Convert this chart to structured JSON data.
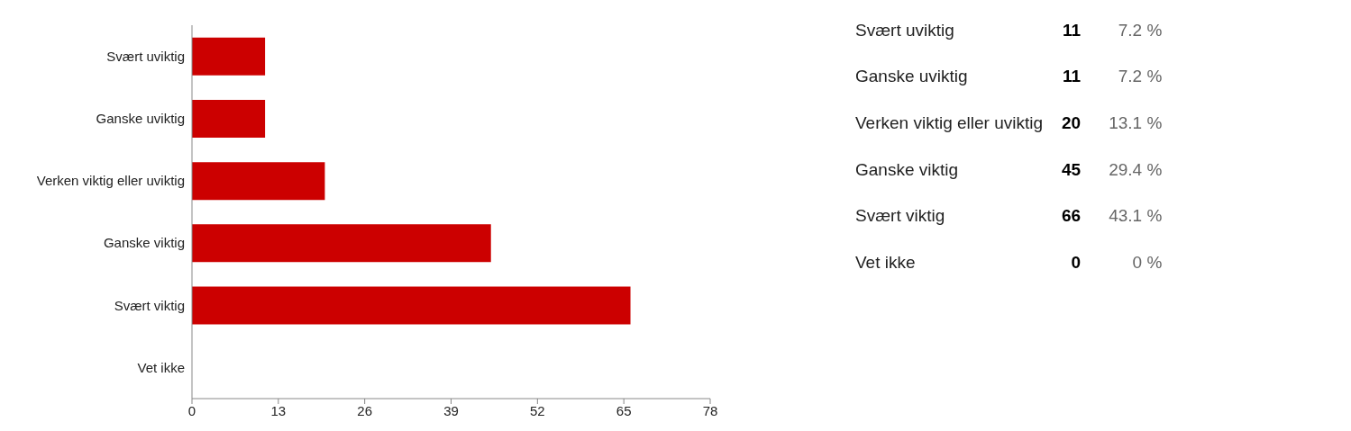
{
  "chart_data": [
    {
      "type": "bar",
      "orientation": "horizontal",
      "categories": [
        "Svært uviktig",
        "Ganske uviktig",
        "Verken viktig eller uviktig",
        "Ganske viktig",
        "Svært viktig",
        "Vet ikke"
      ],
      "values": [
        11,
        11,
        20,
        45,
        66,
        0
      ],
      "color": "#cc0000",
      "xlim": [
        0,
        78
      ],
      "xticks": [
        0,
        13,
        26,
        39,
        52,
        65,
        78
      ]
    },
    {
      "type": "other",
      "annotations": [
        "Svært uviktig",
        "11",
        "7.2 %",
        "Ganske uviktig",
        "11",
        "7.2 %",
        "Verken viktig eller uviktig",
        "20",
        "13.1 %",
        "Ganske viktig",
        "45",
        "29.4 %",
        "Svært viktig",
        "66",
        "43.1 %",
        "Vet ikke",
        "0",
        "0 %"
      ]
    }
  ]
}
